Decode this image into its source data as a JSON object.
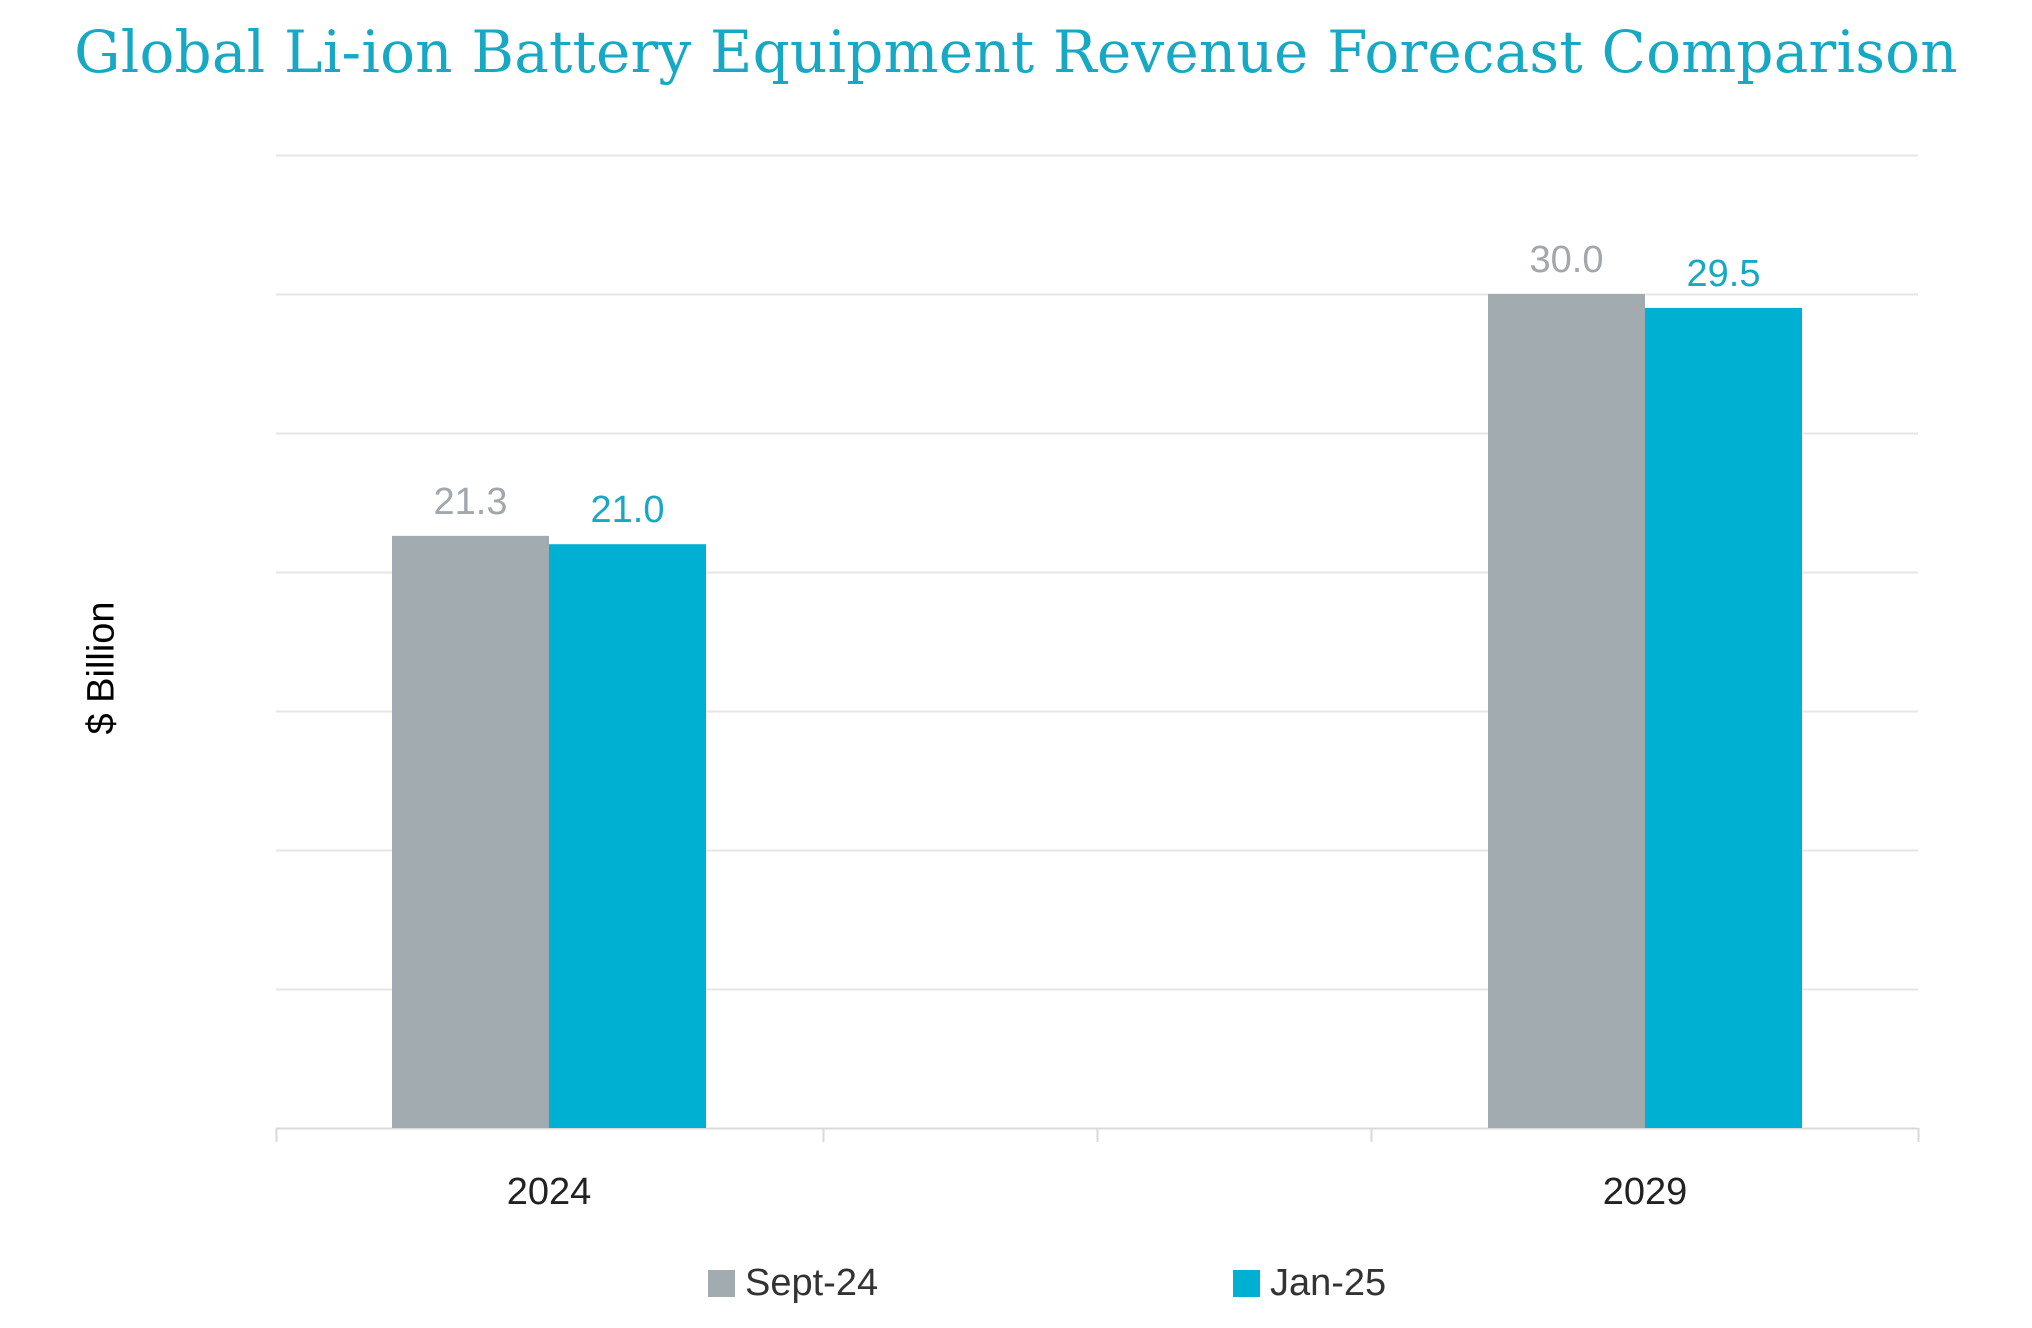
{
  "chart_data": {
    "type": "bar",
    "title": "Global Li-ion Battery Equipment Revenue Forecast Comparison",
    "xlabel": "",
    "ylabel": "$ Billion",
    "categories": [
      "2024",
      "2029"
    ],
    "series": [
      {
        "name": "Sept-24",
        "values": [
          21.3,
          30.0
        ],
        "labels": [
          "21.3",
          "30.0"
        ],
        "color": "#a2abb0",
        "label_color": "#a0a8ad"
      },
      {
        "name": "Jan-25",
        "values": [
          21.0,
          29.5
        ],
        "labels": [
          "21.0",
          "29.5"
        ],
        "color": "#00b0d2",
        "label_color": "#17a9c4"
      }
    ],
    "ylim": [
      0,
      35
    ],
    "grid": true,
    "legend_position": "bottom"
  },
  "colors": {
    "title": "#17a9c4",
    "gridline": "#e6e6e6",
    "axis_tick_text": "#222222"
  }
}
